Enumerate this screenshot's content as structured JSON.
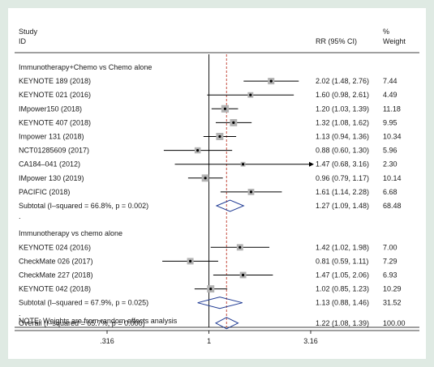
{
  "chart_data": {
    "type": "forest",
    "header": {
      "study_line1": "Study",
      "study_line2": "ID",
      "effect_label": "RR (95% CI)",
      "weight_line1": "%",
      "weight_line2": "Weight"
    },
    "x_scale": "log",
    "x_range": [
      0.316,
      3.16
    ],
    "x_ticks": [
      {
        "value": 0.316,
        "label": ".316"
      },
      {
        "value": 1,
        "label": "1"
      },
      {
        "value": 3.16,
        "label": "3.16"
      }
    ],
    "null_line": 1,
    "overall_line": 1.22,
    "groups": [
      {
        "title": "Immunotherapy+Chemo vs Chemo alone",
        "studies": [
          {
            "name": "KEYNOTE 189 (2018)",
            "rr": 2.02,
            "lo": 1.48,
            "hi": 2.76,
            "text": "2.02 (1.48, 2.76)",
            "weight": 7.44,
            "weight_text": "7.44"
          },
          {
            "name": "KEYNOTE 021 (2016)",
            "rr": 1.6,
            "lo": 0.98,
            "hi": 2.61,
            "text": "1.60 (0.98, 2.61)",
            "weight": 4.49,
            "weight_text": "4.49"
          },
          {
            "name": "IMpower150 (2018)",
            "rr": 1.2,
            "lo": 1.03,
            "hi": 1.39,
            "text": "1.20 (1.03, 1.39)",
            "weight": 11.18,
            "weight_text": "11.18"
          },
          {
            "name": "KEYNOTE 407 (2018)",
            "rr": 1.32,
            "lo": 1.08,
            "hi": 1.62,
            "text": "1.32 (1.08, 1.62)",
            "weight": 9.95,
            "weight_text": "9.95"
          },
          {
            "name": "Impower 131 (2018)",
            "rr": 1.13,
            "lo": 0.94,
            "hi": 1.36,
            "text": "1.13 (0.94, 1.36)",
            "weight": 10.34,
            "weight_text": "10.34"
          },
          {
            "name": "NCT01285609 (2017)",
            "rr": 0.88,
            "lo": 0.6,
            "hi": 1.3,
            "text": "0.88 (0.60, 1.30)",
            "weight": 5.96,
            "weight_text": "5.96"
          },
          {
            "name": "CA184–041 (2012)",
            "rr": 1.47,
            "lo": 0.68,
            "hi": 3.16,
            "text": "1.47 (0.68, 3.16)",
            "weight": 2.3,
            "weight_text": "2.30",
            "arrow": true
          },
          {
            "name": "IMpower 130 (2019)",
            "rr": 0.96,
            "lo": 0.79,
            "hi": 1.17,
            "text": "0.96 (0.79, 1.17)",
            "weight": 10.14,
            "weight_text": "10.14"
          },
          {
            "name": "PACIFIC (2018)",
            "rr": 1.61,
            "lo": 1.14,
            "hi": 2.28,
            "text": "1.61 (1.14, 2.28)",
            "weight": 6.68,
            "weight_text": "6.68"
          }
        ],
        "subtotal": {
          "label": "Subtotal  (I–squared = 66.8%, p = 0.002)",
          "rr": 1.27,
          "lo": 1.09,
          "hi": 1.48,
          "text": "1.27 (1.09, 1.48)",
          "weight_text": "68.48"
        }
      },
      {
        "title": "Immunotherapy vs chemo alone",
        "studies": [
          {
            "name": "KEYNOTE 024 (2016)",
            "rr": 1.42,
            "lo": 1.02,
            "hi": 1.98,
            "text": "1.42 (1.02, 1.98)",
            "weight": 7.0,
            "weight_text": "7.00"
          },
          {
            "name": "CheckMate 026 (2017)",
            "rr": 0.81,
            "lo": 0.59,
            "hi": 1.11,
            "text": "0.81 (0.59, 1.11)",
            "weight": 7.29,
            "weight_text": "7.29"
          },
          {
            "name": "CheckMate 227 (2018)",
            "rr": 1.47,
            "lo": 1.05,
            "hi": 2.06,
            "text": "1.47 (1.05, 2.06)",
            "weight": 6.93,
            "weight_text": "6.93"
          },
          {
            "name": "KEYNOTE 042 (2018)",
            "rr": 1.02,
            "lo": 0.85,
            "hi": 1.23,
            "text": "1.02 (0.85, 1.23)",
            "weight": 10.29,
            "weight_text": "10.29"
          }
        ],
        "subtotal": {
          "label": "Subtotal  (I–squared = 67.9%, p = 0.025)",
          "rr": 1.13,
          "lo": 0.88,
          "hi": 1.46,
          "text": "1.13 (0.88, 1.46)",
          "weight_text": "31.52"
        }
      }
    ],
    "group_separator": ".",
    "overall": {
      "label": "Overall  (I–squared = 65.7%, p = 0.000)",
      "rr": 1.22,
      "lo": 1.08,
      "hi": 1.39,
      "text": "1.22 (1.08, 1.39)",
      "weight_text": "100.00"
    },
    "note": "NOTE: Weights are from random effects analysis",
    "colors": {
      "box": "#b3b3b3",
      "line": "#000000",
      "null_line": "#000000",
      "overall_line": "#c0392b",
      "diamond": "#1f3a93",
      "background": "#dfeae3"
    }
  }
}
